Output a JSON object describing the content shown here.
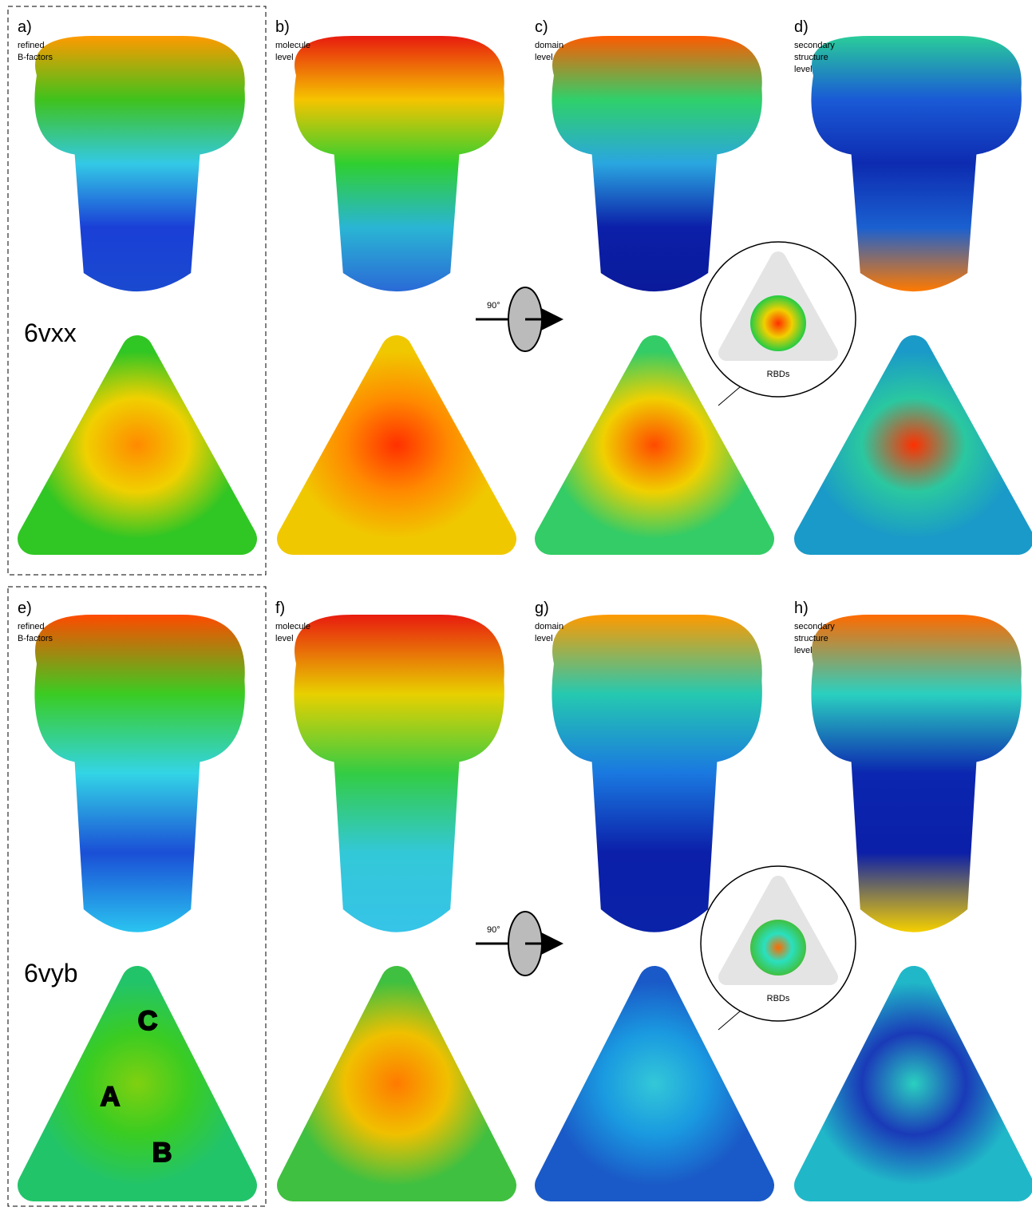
{
  "rows": [
    {
      "structure": "6vxx",
      "rotation": "90°",
      "inset": "RBDs",
      "panels": [
        {
          "label": "a)",
          "caption": [
            "refined",
            "B-factors"
          ]
        },
        {
          "label": "b)",
          "caption": [
            "molecule",
            "level"
          ]
        },
        {
          "label": "c)",
          "caption": [
            "domain",
            "level"
          ]
        },
        {
          "label": "d)",
          "caption": [
            "secondary",
            "structure",
            "level"
          ]
        }
      ]
    },
    {
      "structure": "6vyb",
      "rotation": "90°",
      "inset": "RBDs",
      "chains": [
        "A",
        "B",
        "C"
      ],
      "panels": [
        {
          "label": "e)",
          "caption": [
            "refined",
            "B-factors"
          ]
        },
        {
          "label": "f)",
          "caption": [
            "molecule",
            "level"
          ]
        },
        {
          "label": "g)",
          "caption": [
            "domain",
            "level"
          ]
        },
        {
          "label": "h)",
          "caption": [
            "secondary",
            "structure",
            "level"
          ]
        }
      ]
    }
  ]
}
